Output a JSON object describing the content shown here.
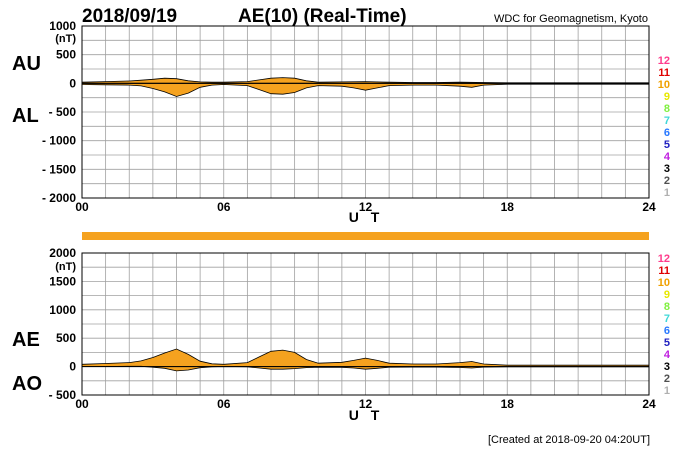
{
  "header": {
    "date": "2018/09/19",
    "title": "AE(10) (Real-Time)",
    "credit": "WDC for Geomagnetism, Kyoto"
  },
  "footer": {
    "created": "[Created at 2018-09-20 04:20UT]"
  },
  "colors": {
    "fill": "#f5a21f",
    "bar": "#f5a21f",
    "grid": "#a0a0a0"
  },
  "stations": [
    {
      "label": "12",
      "color": "#ff3c8c"
    },
    {
      "label": "11",
      "color": "#e00000"
    },
    {
      "label": "10",
      "color": "#f0a000"
    },
    {
      "label": "9",
      "color": "#e8e800"
    },
    {
      "label": "8",
      "color": "#80f040"
    },
    {
      "label": "7",
      "color": "#40d8d8"
    },
    {
      "label": "6",
      "color": "#2878ff"
    },
    {
      "label": "5",
      "color": "#2020c0"
    },
    {
      "label": "4",
      "color": "#c020e0"
    },
    {
      "label": "3",
      "color": "#000000"
    },
    {
      "label": "2",
      "color": "#505050"
    },
    {
      "label": "1",
      "color": "#b0b0b0"
    }
  ],
  "chart_data": [
    {
      "type": "area",
      "panel": "top",
      "series_labels": {
        "upper": "AU",
        "lower": "AL"
      },
      "unit": "(nT)",
      "xlabel": "U T",
      "xlim": [
        0,
        24
      ],
      "xticks": [
        0,
        6,
        12,
        18,
        24
      ],
      "xtick_labels": [
        "00",
        "06",
        "12",
        "18",
        "24"
      ],
      "ylim": [
        -2000,
        1000
      ],
      "yticks": [
        1000,
        500,
        0,
        -500,
        -1000,
        -1500,
        -2000
      ],
      "ytick_labels": [
        "1000",
        "500",
        "0",
        "- 500",
        "- 1000",
        "- 1500",
        "- 2000"
      ],
      "series": [
        {
          "name": "AU",
          "x": [
            0,
            1,
            2,
            2.5,
            3,
            3.5,
            4,
            4.5,
            5,
            5.5,
            6,
            7,
            7.5,
            8,
            8.5,
            9,
            9.5,
            10,
            11,
            12,
            13,
            14,
            15,
            16,
            17,
            18,
            20,
            22,
            24
          ],
          "values": [
            20,
            30,
            40,
            55,
            70,
            90,
            80,
            45,
            25,
            20,
            20,
            30,
            60,
            90,
            100,
            90,
            45,
            20,
            25,
            30,
            20,
            15,
            15,
            20,
            15,
            10,
            10,
            10,
            10
          ]
        },
        {
          "name": "AL",
          "x": [
            0,
            1,
            2,
            2.5,
            3,
            3.5,
            4,
            4.5,
            5,
            5.5,
            6,
            7,
            7.5,
            8,
            8.5,
            9,
            9.5,
            10,
            11,
            11.5,
            12,
            12.5,
            13,
            14,
            15,
            16,
            16.5,
            17,
            18,
            20,
            22,
            24
          ],
          "values": [
            -20,
            -25,
            -30,
            -45,
            -90,
            -150,
            -230,
            -170,
            -70,
            -30,
            -20,
            -40,
            -110,
            -180,
            -190,
            -160,
            -80,
            -40,
            -50,
            -80,
            -120,
            -80,
            -40,
            -30,
            -30,
            -50,
            -70,
            -30,
            -15,
            -15,
            -15,
            -15
          ]
        }
      ]
    },
    {
      "type": "area",
      "panel": "bottom",
      "series_labels": {
        "upper": "AE",
        "lower": "AO"
      },
      "unit": "(nT)",
      "xlabel": "U T",
      "xlim": [
        0,
        24
      ],
      "xticks": [
        0,
        6,
        12,
        18,
        24
      ],
      "xtick_labels": [
        "00",
        "06",
        "12",
        "18",
        "24"
      ],
      "ylim": [
        -500,
        2000
      ],
      "yticks": [
        2000,
        1500,
        1000,
        500,
        0,
        -500
      ],
      "ytick_labels": [
        "2000",
        "1500",
        "1000",
        "500",
        "0",
        "- 500"
      ],
      "series": [
        {
          "name": "AE",
          "x": [
            0,
            1,
            2,
            2.5,
            3,
            3.5,
            4,
            4.5,
            5,
            5.5,
            6,
            7,
            7.5,
            8,
            8.5,
            9,
            9.5,
            10,
            11,
            11.5,
            12,
            12.5,
            13,
            14,
            15,
            16,
            16.5,
            17,
            18,
            20,
            22,
            24
          ],
          "values": [
            40,
            55,
            70,
            100,
            160,
            240,
            310,
            215,
            95,
            50,
            40,
            70,
            170,
            270,
            290,
            250,
            125,
            60,
            75,
            110,
            150,
            110,
            60,
            45,
            45,
            70,
            90,
            45,
            25,
            25,
            25,
            25
          ]
        },
        {
          "name": "AO",
          "x": [
            0,
            1,
            2,
            2.5,
            3,
            3.5,
            4,
            4.5,
            5,
            5.5,
            6,
            7,
            7.5,
            8,
            8.5,
            9,
            9.5,
            10,
            11,
            11.5,
            12,
            12.5,
            13,
            14,
            15,
            16,
            16.5,
            17,
            18,
            20,
            22,
            24
          ],
          "values": [
            0,
            2,
            5,
            5,
            -10,
            -30,
            -75,
            -60,
            -20,
            -5,
            0,
            -5,
            -25,
            -45,
            -45,
            -35,
            -18,
            -10,
            -12,
            -25,
            -45,
            -30,
            -10,
            -8,
            -8,
            -15,
            -25,
            -8,
            -3,
            -3,
            -3,
            -3
          ]
        }
      ]
    }
  ]
}
